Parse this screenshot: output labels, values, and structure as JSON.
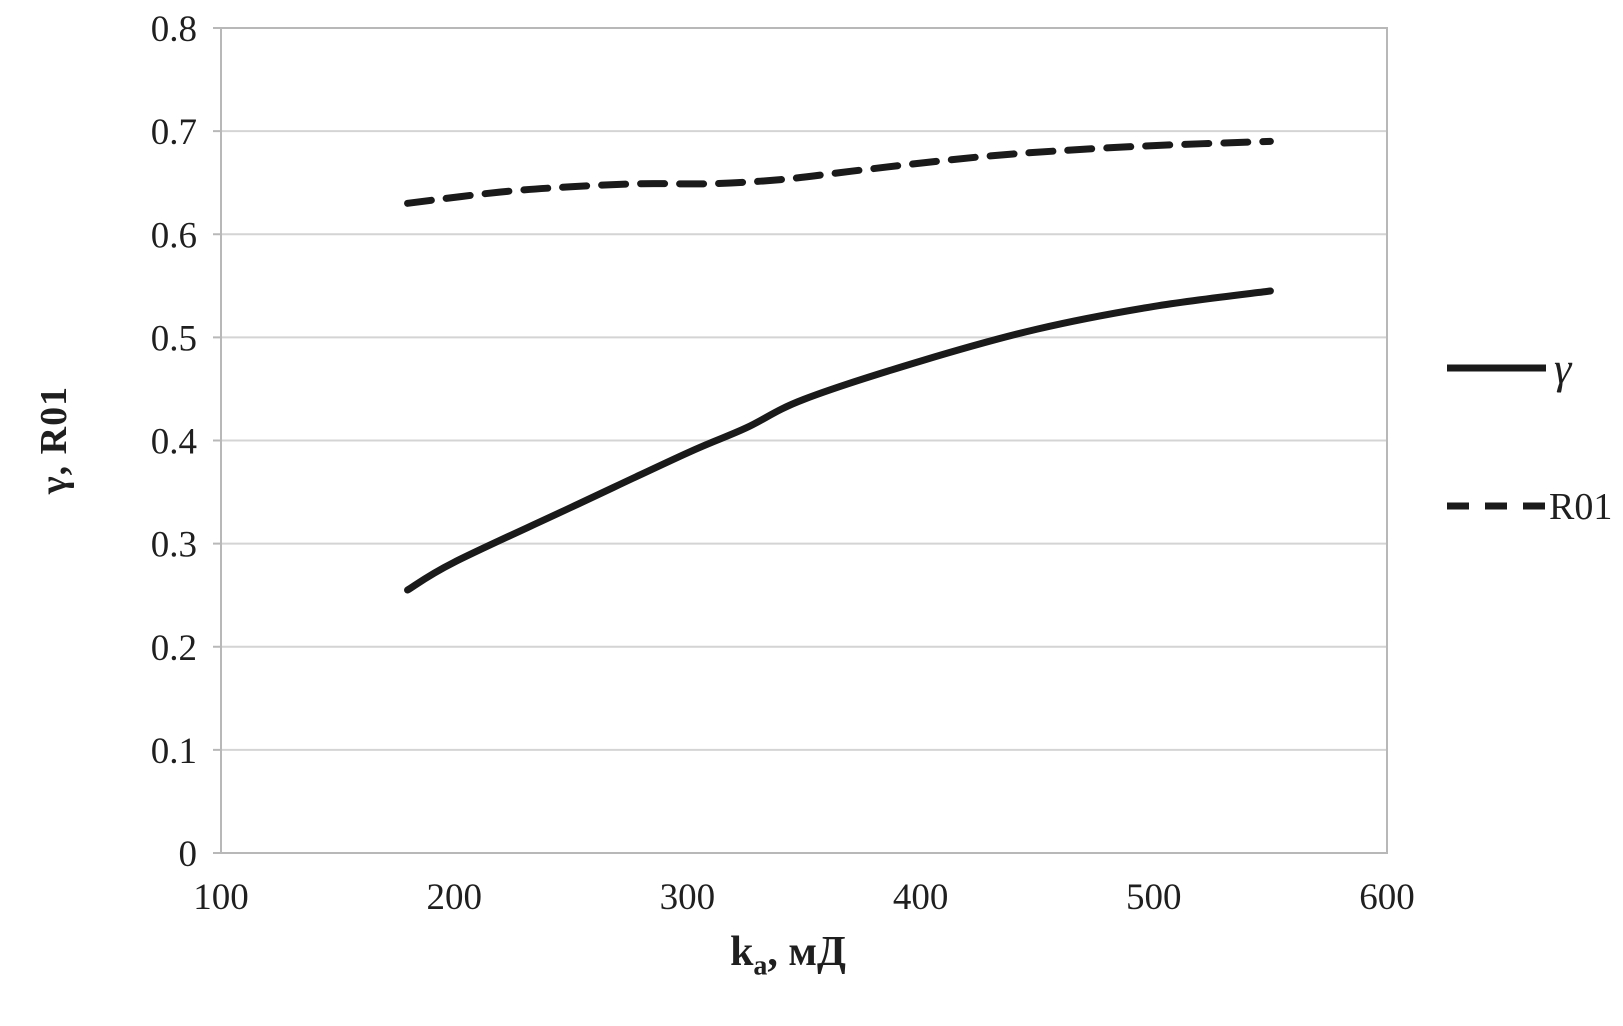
{
  "chart_data": {
    "type": "line",
    "title": "",
    "xlabel": "ka, мД",
    "xlabel_parts": {
      "main": "k",
      "sub": "a",
      "rest": ", мД"
    },
    "ylabel": "γ, R01",
    "xlim": [
      100,
      600
    ],
    "ylim": [
      0,
      0.8
    ],
    "x_ticks": [
      100,
      200,
      300,
      400,
      500,
      600
    ],
    "y_ticks": [
      0,
      0.1,
      0.2,
      0.3,
      0.4,
      0.5,
      0.6,
      0.7,
      0.8
    ],
    "y_tick_labels": [
      "0",
      "0.1",
      "0.2",
      "0.3",
      "0.4",
      "0.5",
      "0.6",
      "0.7",
      "0.8"
    ],
    "grid": "horizontal",
    "legend_position": "right-outside",
    "series": [
      {
        "name": "γ",
        "style": "solid",
        "x": [
          180,
          200,
          250,
          300,
          325,
          350,
          400,
          450,
          500,
          550
        ],
        "y": [
          0.255,
          0.282,
          0.335,
          0.388,
          0.412,
          0.44,
          0.477,
          0.508,
          0.53,
          0.545
        ]
      },
      {
        "name": "R01",
        "style": "dashed",
        "x": [
          180,
          220,
          250,
          280,
          310,
          340,
          370,
          400,
          430,
          460,
          500,
          550
        ],
        "y": [
          0.63,
          0.641,
          0.646,
          0.649,
          0.649,
          0.653,
          0.661,
          0.669,
          0.676,
          0.681,
          0.686,
          0.69
        ]
      }
    ]
  },
  "colors": {
    "series_line": "#1a1a1a",
    "grid_line": "#d4d4d4",
    "plot_border": "#b8b8b8",
    "text": "#1f1f1f",
    "background": "#ffffff"
  }
}
